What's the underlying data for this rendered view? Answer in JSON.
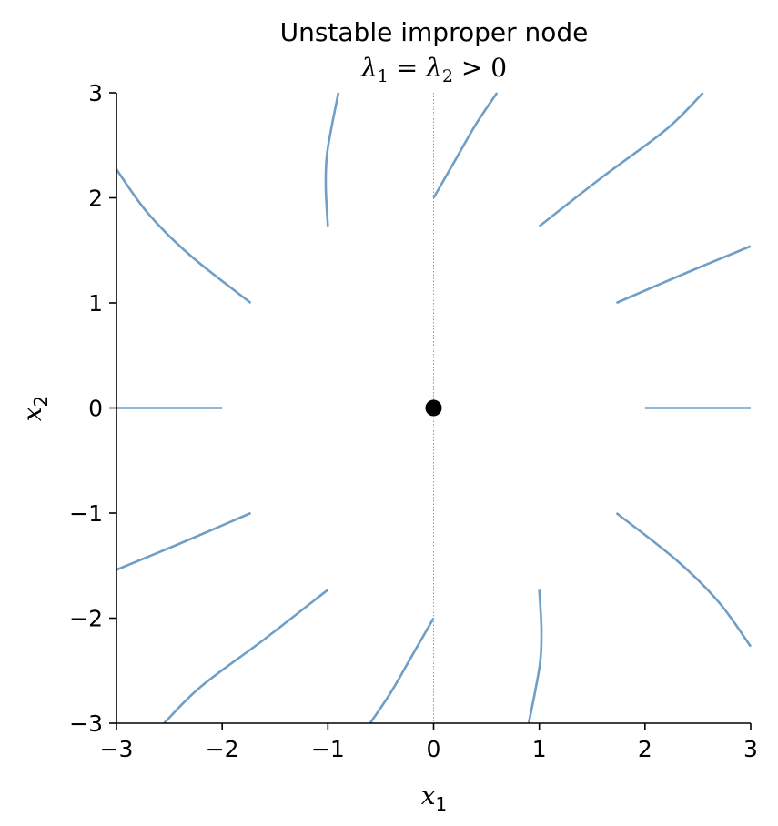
{
  "chart_data": {
    "type": "line",
    "title": "Unstable improper node",
    "subtitle": "λ1 = λ2 > 0",
    "subtitle_parts": {
      "lam": "λ",
      "sub1": "1",
      "eq": " = ",
      "sub2": "2",
      "gt": " > 0"
    },
    "xlabel": {
      "base": "x",
      "sub": "1"
    },
    "ylabel": {
      "base": "x",
      "sub": "2"
    },
    "xlim": [
      -3,
      3
    ],
    "ylim": [
      -3,
      3
    ],
    "xticks": [
      -3,
      -2,
      -1,
      0,
      1,
      2,
      3
    ],
    "yticks": [
      -3,
      -2,
      -1,
      0,
      1,
      2,
      3
    ],
    "xtick_labels": [
      "−3",
      "−2",
      "−1",
      "0",
      "1",
      "2",
      "3"
    ],
    "ytick_labels": [
      "−3",
      "−2",
      "−1",
      "0",
      "1",
      "2",
      "3"
    ],
    "grid": false,
    "reference_lines": {
      "x": 0,
      "y": 0,
      "style": "dotted"
    },
    "line_color": "#6f9fc6",
    "equilibrium": {
      "x": 0,
      "y": 0,
      "color": "#000000"
    },
    "series": [
      {
        "values": [
          [
            -1.0,
            1.73
          ],
          [
            -1.02,
            2.1
          ],
          [
            -1.01,
            2.4
          ],
          [
            -0.96,
            2.7
          ],
          [
            -0.9,
            3.0
          ]
        ]
      },
      {
        "values": [
          [
            0.0,
            2.0
          ],
          [
            0.2,
            2.35
          ],
          [
            0.4,
            2.7
          ],
          [
            0.6,
            3.0
          ]
        ]
      },
      {
        "values": [
          [
            1.0,
            1.73
          ],
          [
            1.6,
            2.2
          ],
          [
            2.2,
            2.65
          ],
          [
            2.55,
            3.0
          ]
        ]
      },
      {
        "values": [
          [
            1.73,
            1.0
          ],
          [
            2.4,
            1.29
          ],
          [
            3.0,
            1.54
          ]
        ]
      },
      {
        "values": [
          [
            2.0,
            0.0
          ],
          [
            3.0,
            0.0
          ]
        ]
      },
      {
        "values": [
          [
            1.73,
            -1.0
          ],
          [
            2.3,
            -1.45
          ],
          [
            2.7,
            -1.85
          ],
          [
            3.0,
            -2.27
          ]
        ]
      },
      {
        "values": [
          [
            1.0,
            -1.73
          ],
          [
            1.02,
            -2.1
          ],
          [
            1.01,
            -2.4
          ],
          [
            0.96,
            -2.7
          ],
          [
            0.9,
            -3.0
          ]
        ]
      },
      {
        "values": [
          [
            0.0,
            -2.0
          ],
          [
            -0.2,
            -2.35
          ],
          [
            -0.4,
            -2.7
          ],
          [
            -0.6,
            -3.0
          ]
        ]
      },
      {
        "values": [
          [
            -1.0,
            -1.73
          ],
          [
            -1.6,
            -2.2
          ],
          [
            -2.2,
            -2.65
          ],
          [
            -2.55,
            -3.0
          ]
        ]
      },
      {
        "values": [
          [
            -1.73,
            -1.0
          ],
          [
            -2.4,
            -1.29
          ],
          [
            -3.0,
            -1.54
          ]
        ]
      },
      {
        "values": [
          [
            -2.0,
            0.0
          ],
          [
            -3.0,
            0.0
          ]
        ]
      },
      {
        "values": [
          [
            -1.73,
            1.0
          ],
          [
            -2.3,
            1.45
          ],
          [
            -2.7,
            1.85
          ],
          [
            -3.0,
            2.27
          ]
        ]
      }
    ]
  }
}
